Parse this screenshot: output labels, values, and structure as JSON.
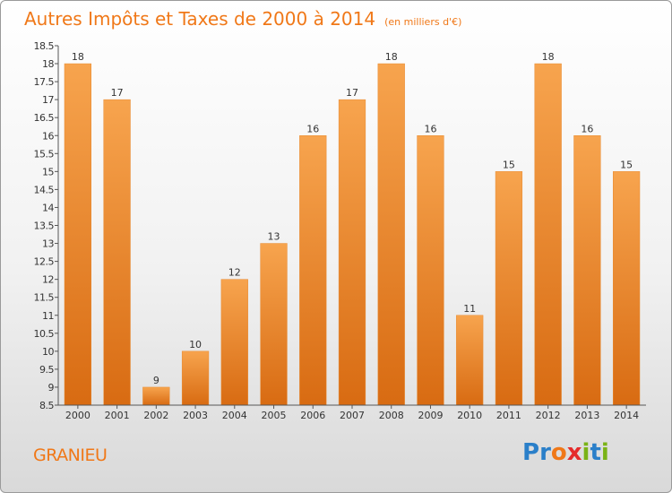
{
  "chart_data": {
    "type": "bar",
    "title": "Autres Impôts et Taxes de 2000 à 2014",
    "subtitle": "(en milliers d'€)",
    "categories": [
      "2000",
      "2001",
      "2002",
      "2003",
      "2004",
      "2005",
      "2006",
      "2007",
      "2008",
      "2009",
      "2010",
      "2011",
      "2012",
      "2013",
      "2014"
    ],
    "values": [
      18,
      17,
      9,
      10,
      12,
      13,
      16,
      17,
      18,
      16,
      11,
      15,
      18,
      16,
      15
    ],
    "ylim": [
      8.5,
      18.5
    ],
    "yticks": [
      "8.5",
      "9",
      "9.5",
      "10",
      "10.5",
      "11",
      "11.5",
      "12",
      "12.5",
      "13",
      "13.5",
      "14",
      "14.5",
      "15",
      "15.5",
      "16",
      "16.5",
      "17",
      "17.5",
      "18",
      "18.5"
    ],
    "grid": false,
    "bar_color": "#f0892c"
  },
  "footer": {
    "location": "GRANIEU",
    "logo_letters": [
      {
        "ch": "P",
        "color": "#2a7fc9"
      },
      {
        "ch": "r",
        "color": "#2a7fc9"
      },
      {
        "ch": "o",
        "color": "#f07818"
      },
      {
        "ch": "x",
        "color": "#e52b2b"
      },
      {
        "ch": "i",
        "color": "#7ab317"
      },
      {
        "ch": "t",
        "color": "#2a7fc9"
      },
      {
        "ch": "i",
        "color": "#7ab317"
      }
    ]
  }
}
